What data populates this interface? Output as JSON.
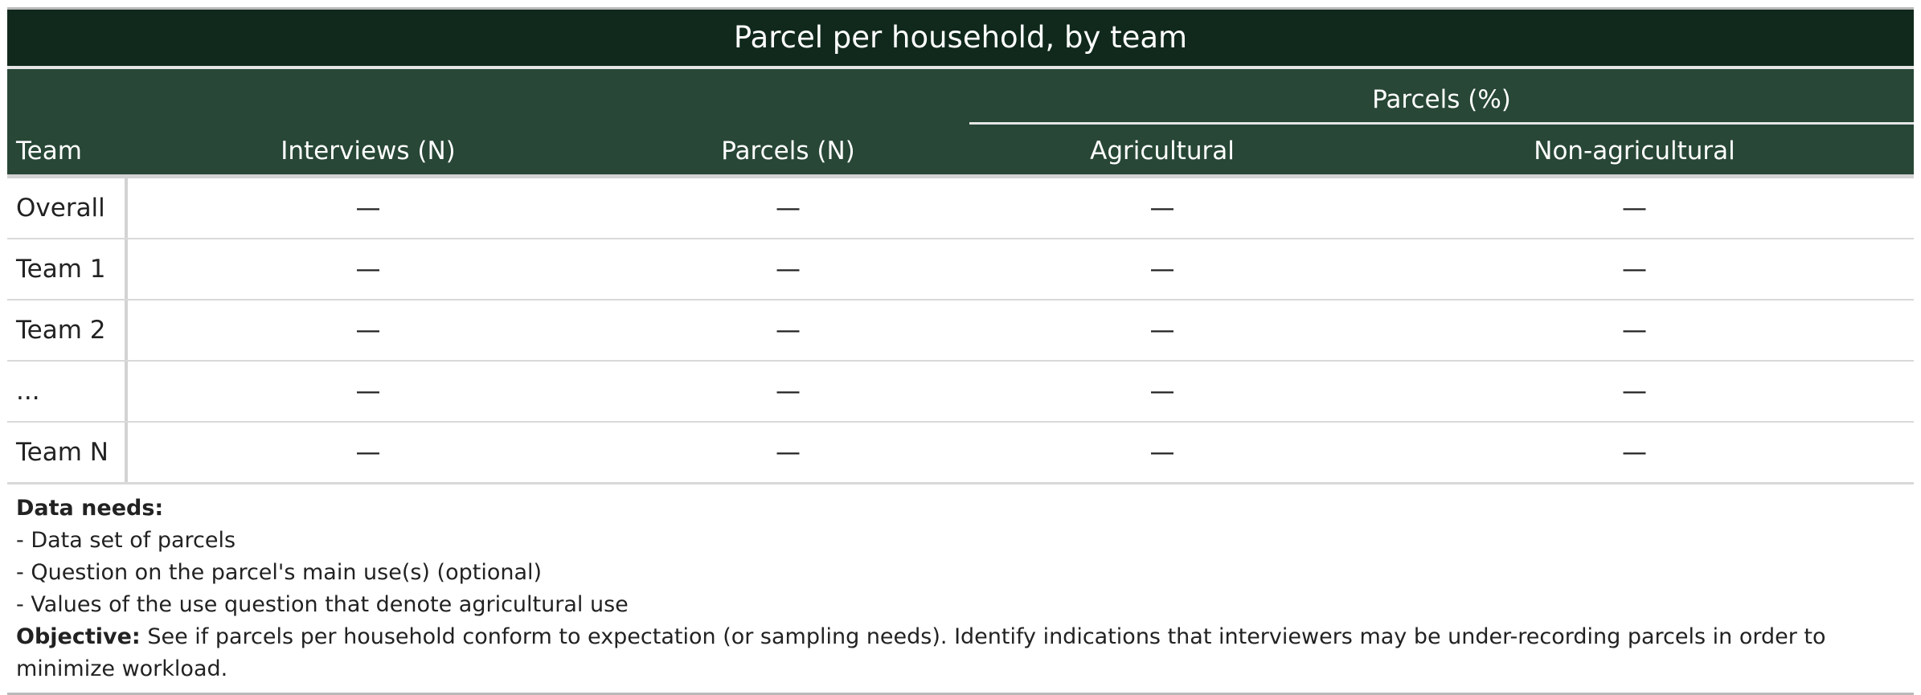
{
  "table": {
    "title": "Parcel per household, by team",
    "spanner_label": "Parcels (%)",
    "columns": [
      "Team",
      "Interviews (N)",
      "Parcels (N)",
      "Agricultural",
      "Non-agricultural"
    ],
    "rows": [
      {
        "label": "Overall",
        "values": [
          "—",
          "—",
          "—",
          "—"
        ]
      },
      {
        "label": "Team 1",
        "values": [
          "—",
          "—",
          "—",
          "—"
        ]
      },
      {
        "label": "Team 2",
        "values": [
          "—",
          "—",
          "—",
          "—"
        ]
      },
      {
        "label": "...",
        "values": [
          "—",
          "—",
          "—",
          "—"
        ]
      },
      {
        "label": "Team N",
        "values": [
          "—",
          "—",
          "—",
          "—"
        ]
      }
    ]
  },
  "notes": {
    "data_needs_label": "Data needs:",
    "data_needs": [
      "- Data set of parcels",
      "- Question on the parcel's main use(s) (optional)",
      "- Values of the use question that denote agricultural use"
    ],
    "objective_label": "Objective:",
    "objective_text": " See if parcels per household conform to expectation (or sampling needs). Identify indications that interviewers may be under-recording parcels in order to minimize workload."
  }
}
